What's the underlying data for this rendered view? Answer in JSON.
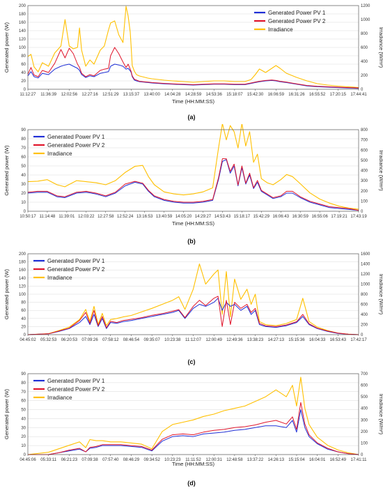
{
  "colors": {
    "pv1": "#1f2fd6",
    "pv2": "#e0152b",
    "irr": "#ffc000"
  },
  "chart_data": [
    {
      "type": "line",
      "caption": "(a)",
      "xlabel": "Time (HH:MM:SS)",
      "ylabel": "Generated power (W)",
      "y2label": "Irradiance (W/m2)",
      "y2label_display": "Irradiance (W/m²)",
      "ylim": [
        0,
        200
      ],
      "yticks": [
        0,
        20,
        40,
        60,
        80,
        100,
        120,
        140,
        160,
        180,
        200
      ],
      "y2lim": [
        0,
        1200
      ],
      "y2ticks": [
        0,
        200,
        400,
        600,
        800,
        1000,
        1200
      ],
      "xticks": [
        "11:12:27",
        "11:36:39",
        "12:02:56",
        "12:27:16",
        "12:51:29",
        "13:15:37",
        "13:40:00",
        "14:04:28",
        "14:28:59",
        "14:53:36",
        "15:18:07",
        "15:42:30",
        "16:06:59",
        "16:31:26",
        "16:55:52",
        "17:20:15",
        "17:44:41"
      ],
      "legend": [
        "Generated Power PV 1",
        "Generated Power PV 2",
        "Irradiance"
      ],
      "legend_position": "top-right",
      "x": [
        0,
        0.15,
        0.3,
        0.5,
        0.7,
        1,
        1.3,
        1.6,
        1.8,
        2,
        2.2,
        2.4,
        2.5,
        2.6,
        2.8,
        3,
        3.2,
        3.5,
        3.7,
        3.9,
        4,
        4.2,
        4.4,
        4.6,
        4.75,
        4.85,
        4.95,
        5,
        5.05,
        5.15,
        5.25,
        5.4,
        5.6,
        5.8,
        6,
        6.3,
        6.6,
        7,
        7.5,
        8,
        8.5,
        9,
        9.5,
        10,
        10.5,
        10.8,
        11,
        11.2,
        11.5,
        11.8,
        12,
        12.2,
        12.5,
        13,
        13.5,
        14,
        14.5,
        15,
        15.5,
        16
      ],
      "series": [
        {
          "name": "Generated Power PV 1",
          "axis": "left",
          "values": [
            32,
            42,
            30,
            27,
            38,
            35,
            48,
            55,
            58,
            60,
            55,
            50,
            45,
            35,
            28,
            32,
            30,
            38,
            40,
            42,
            55,
            60,
            58,
            55,
            48,
            50,
            44,
            40,
            30,
            22,
            20,
            18,
            17,
            16,
            15,
            14,
            13,
            12,
            11,
            10,
            11,
            12,
            12,
            11,
            11,
            14,
            16,
            18,
            20,
            21,
            20,
            18,
            16,
            12,
            8,
            6,
            5,
            4,
            3,
            2
          ]
        },
        {
          "name": "Generated Power PV 2",
          "axis": "left",
          "values": [
            36,
            52,
            34,
            30,
            45,
            40,
            62,
            95,
            75,
            98,
            85,
            60,
            52,
            38,
            30,
            35,
            32,
            45,
            48,
            50,
            80,
            100,
            85,
            65,
            52,
            60,
            48,
            42,
            32,
            24,
            22,
            19,
            18,
            17,
            16,
            15,
            14,
            13,
            12,
            11,
            12,
            13,
            13,
            12,
            12,
            15,
            17,
            19,
            21,
            22,
            21,
            19,
            17,
            13,
            9,
            7,
            6,
            5,
            4,
            3
          ]
        },
        {
          "name": "Irradiance",
          "axis": "right",
          "values": [
            470,
            500,
            320,
            250,
            380,
            330,
            520,
            620,
            1000,
            620,
            580,
            600,
            880,
            560,
            330,
            420,
            360,
            560,
            620,
            850,
            950,
            980,
            780,
            670,
            1190,
            1050,
            820,
            600,
            340,
            260,
            210,
            190,
            175,
            160,
            150,
            140,
            130,
            120,
            110,
            100,
            110,
            120,
            120,
            110,
            110,
            140,
            210,
            290,
            240,
            300,
            340,
            300,
            230,
            170,
            120,
            80,
            60,
            45,
            35,
            25
          ]
        }
      ]
    },
    {
      "type": "line",
      "caption": "(b)",
      "xlabel": "Time (HH:MM:SS)",
      "ylabel": "Generated power (W)",
      "y2label": "Irradiance (W/m2)",
      "y2label_display": "Irradiance (W/m²)",
      "ylim": [
        0,
        90
      ],
      "yticks": [
        0,
        10,
        20,
        30,
        40,
        50,
        60,
        70,
        80,
        90
      ],
      "y2lim": [
        0,
        800
      ],
      "y2ticks": [
        0,
        100,
        200,
        300,
        400,
        500,
        600,
        700,
        800
      ],
      "xticks": [
        "10:50:17",
        "11:14:48",
        "11:39:01",
        "12:03:22",
        "12:27:58",
        "12:52:24",
        "13:16:53",
        "13:40:59",
        "14:05:20",
        "14:29:27",
        "14:53:43",
        "15:18:17",
        "15:42:29",
        "16:06:43",
        "16:30:59",
        "16:55:06",
        "17:19:21",
        "17:43:19"
      ],
      "legend": [
        "Generated Power PV 1",
        "Generated Power PV 2",
        "Irradiance"
      ],
      "legend_position": "top-left",
      "x": [
        0,
        0.5,
        1,
        1.5,
        1.9,
        2.5,
        3,
        3.5,
        4,
        4.5,
        5,
        5.5,
        5.9,
        6.2,
        6.5,
        7,
        7.5,
        8,
        8.5,
        9,
        9.5,
        9.8,
        10,
        10.2,
        10.4,
        10.6,
        10.8,
        11,
        11.2,
        11.4,
        11.6,
        11.8,
        12,
        12.3,
        12.6,
        13,
        13.3,
        13.6,
        14,
        14.5,
        15,
        15.5,
        16,
        16.5,
        17
      ],
      "series": [
        {
          "name": "Generated Power PV 1",
          "axis": "left",
          "values": [
            20,
            21,
            21,
            16,
            15,
            20,
            21,
            19,
            16,
            20,
            28,
            32,
            30,
            22,
            16,
            12,
            10,
            9,
            9,
            10,
            12,
            35,
            55,
            57,
            42,
            50,
            28,
            48,
            30,
            40,
            25,
            32,
            22,
            18,
            14,
            16,
            20,
            20,
            15,
            10,
            7,
            4,
            3,
            2,
            1
          ]
        },
        {
          "name": "Generated Power PV 2",
          "axis": "left",
          "values": [
            21,
            22,
            22,
            17,
            16,
            21,
            22,
            20,
            17,
            21,
            30,
            33,
            31,
            23,
            17,
            13,
            11,
            10,
            10,
            11,
            13,
            37,
            58,
            58,
            44,
            52,
            29,
            50,
            31,
            42,
            26,
            34,
            23,
            19,
            15,
            17,
            22,
            22,
            16,
            11,
            8,
            5,
            4,
            3,
            1
          ]
        },
        {
          "name": "Irradiance",
          "axis": "right",
          "values": [
            290,
            295,
            310,
            260,
            240,
            300,
            290,
            280,
            260,
            300,
            380,
            440,
            450,
            340,
            260,
            190,
            170,
            160,
            170,
            190,
            230,
            620,
            860,
            700,
            840,
            780,
            620,
            860,
            640,
            780,
            480,
            560,
            320,
            280,
            260,
            310,
            360,
            340,
            270,
            180,
            120,
            80,
            50,
            30,
            20
          ]
        }
      ]
    },
    {
      "type": "line",
      "caption": "(c)",
      "xlabel": "",
      "ylabel": "Generated power (W)",
      "y2label": "Irradiance (W/m2)",
      "y2label_display": "Irradiance (W/m²)",
      "ylim": [
        0,
        200
      ],
      "yticks": [
        0,
        20,
        40,
        60,
        80,
        100,
        120,
        140,
        160,
        180,
        200
      ],
      "y2lim": [
        0,
        1600
      ],
      "y2ticks": [
        0,
        200,
        400,
        600,
        800,
        1000,
        1200,
        1400,
        1600
      ],
      "xticks": [
        "04:45:02",
        "05:32:53",
        "06:20:53",
        "07:09:26",
        "07:58:12",
        "08:46:54",
        "09:35:07",
        "10:23:38",
        "11:12:07",
        "12:00:49",
        "12:49:36",
        "13:38:23",
        "14:27:13",
        "15:15:36",
        "16:04:33",
        "16:53:43",
        "17:42:17"
      ],
      "legend": [
        "Generated Power PV 1",
        "Generated Power PV 2",
        "Irradiance"
      ],
      "legend_position": "top-left",
      "x": [
        0,
        1,
        1.5,
        2,
        2.5,
        2.8,
        3,
        3.2,
        3.4,
        3.6,
        3.8,
        4,
        4.3,
        4.6,
        5,
        5.5,
        6,
        6.5,
        7,
        7.3,
        7.6,
        8,
        8.3,
        8.6,
        9,
        9.2,
        9.4,
        9.6,
        9.8,
        10,
        10.3,
        10.6,
        10.8,
        11,
        11.2,
        11.5,
        12,
        12.5,
        13,
        13.3,
        13.6,
        14,
        14.5,
        15,
        15.5,
        16
      ],
      "series": [
        {
          "name": "Generated Power PV 1",
          "axis": "left",
          "values": [
            0,
            2,
            8,
            15,
            30,
            45,
            25,
            50,
            20,
            40,
            15,
            30,
            28,
            32,
            35,
            40,
            45,
            50,
            55,
            60,
            40,
            65,
            75,
            70,
            80,
            90,
            60,
            80,
            70,
            75,
            60,
            70,
            50,
            60,
            25,
            20,
            18,
            22,
            30,
            45,
            25,
            15,
            8,
            3,
            1,
            0
          ]
        },
        {
          "name": "Generated Power PV 2",
          "axis": "left",
          "values": [
            0,
            2,
            9,
            16,
            35,
            55,
            28,
            60,
            22,
            45,
            17,
            33,
            30,
            35,
            38,
            42,
            48,
            52,
            58,
            62,
            42,
            70,
            85,
            72,
            90,
            95,
            20,
            85,
            25,
            80,
            65,
            75,
            55,
            65,
            28,
            22,
            20,
            24,
            32,
            50,
            27,
            16,
            9,
            4,
            1,
            0
          ]
        },
        {
          "name": "Irradiance",
          "axis": "right",
          "values": [
            0,
            20,
            80,
            150,
            300,
            500,
            260,
            560,
            200,
            420,
            180,
            300,
            320,
            350,
            380,
            450,
            520,
            600,
            680,
            750,
            500,
            900,
            1400,
            1000,
            1200,
            1280,
            400,
            1250,
            350,
            1100,
            700,
            900,
            600,
            800,
            260,
            200,
            180,
            220,
            300,
            720,
            260,
            150,
            80,
            30,
            10,
            0
          ]
        }
      ]
    },
    {
      "type": "line",
      "caption": "(d)",
      "xlabel": "Time (HH:MM:SS)",
      "ylabel": "Generated power (W)",
      "y2label": "Irradiance (W/m2)",
      "y2label_display": "Irradiance (W/m²)",
      "ylim": [
        0,
        90
      ],
      "yticks": [
        0,
        10,
        20,
        30,
        40,
        50,
        60,
        70,
        80,
        90
      ],
      "y2lim": [
        0,
        700
      ],
      "y2ticks": [
        0,
        100,
        200,
        300,
        400,
        500,
        600,
        700
      ],
      "xticks": [
        "04:45:06",
        "05:33:11",
        "06:21:23",
        "07:09:38",
        "07:57:40",
        "08:46:29",
        "09:34:52",
        "10:23:23",
        "11:11:52",
        "12:00:31",
        "12:48:58",
        "13:37:22",
        "14:26:13",
        "15:15:04",
        "16:04:01",
        "16:52:49",
        "17:41:11"
      ],
      "legend": [
        "Generated Power PV 1",
        "Generated Power PV 2",
        "Irradiance"
      ],
      "legend_position": "top-left",
      "x": [
        0,
        1,
        1.5,
        2,
        2.5,
        2.8,
        3,
        3.3,
        3.6,
        4,
        4.5,
        5,
        5.5,
        6,
        6.5,
        7,
        7.5,
        8,
        8.5,
        9,
        9.5,
        10,
        10.5,
        11,
        11.5,
        12,
        12.5,
        12.8,
        13,
        13.2,
        13.4,
        13.6,
        14,
        14.5,
        15,
        15.5,
        16
      ],
      "series": [
        {
          "name": "Generated Power PV 1",
          "axis": "left",
          "values": [
            0,
            0,
            2,
            4,
            6,
            3,
            7,
            8,
            10,
            10,
            10,
            9,
            8,
            4,
            15,
            20,
            21,
            20,
            23,
            24,
            25,
            27,
            28,
            30,
            32,
            32,
            30,
            38,
            25,
            50,
            30,
            20,
            12,
            6,
            3,
            1,
            0
          ]
        },
        {
          "name": "Generated Power PV 2",
          "axis": "left",
          "values": [
            0,
            0,
            2,
            5,
            7,
            3,
            8,
            9,
            11,
            11,
            11,
            10,
            9,
            5,
            17,
            22,
            23,
            22,
            25,
            27,
            28,
            30,
            31,
            33,
            36,
            38,
            34,
            42,
            28,
            58,
            34,
            22,
            13,
            7,
            3,
            1,
            0
          ]
        },
        {
          "name": "Irradiance",
          "axis": "right",
          "values": [
            0,
            20,
            50,
            80,
            110,
            60,
            130,
            120,
            120,
            110,
            110,
            100,
            90,
            50,
            200,
            260,
            280,
            300,
            330,
            350,
            380,
            400,
            420,
            460,
            500,
            560,
            500,
            600,
            420,
            670,
            400,
            260,
            150,
            80,
            40,
            15,
            0
          ]
        }
      ]
    }
  ]
}
